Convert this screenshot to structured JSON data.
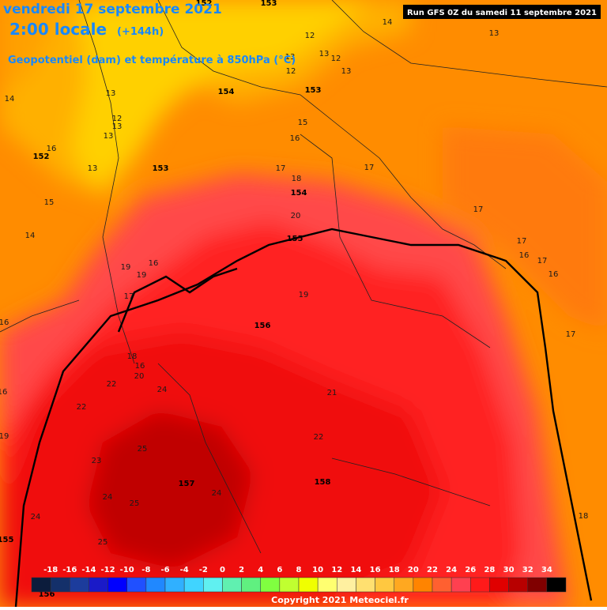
{
  "header": {
    "date": "vendredi 17 septembre 2021",
    "time": "2:00 locale",
    "lead": "(+144h)",
    "subtitle": "Geopotentiel (dam) et température à 850hPa (°C)",
    "run": "Run GFS 0Z du samedi 11 septembre 2021"
  },
  "legend": {
    "ticks": [
      -18,
      -16,
      -14,
      -12,
      -10,
      -8,
      -6,
      -4,
      -2,
      0,
      2,
      4,
      6,
      8,
      10,
      12,
      14,
      16,
      18,
      20,
      22,
      24,
      26,
      28,
      30,
      32,
      34
    ],
    "colors": [
      "#0c1c3c",
      "#14306a",
      "#1c3c9c",
      "#1a1ac8",
      "#0000ff",
      "#2050ff",
      "#2088ff",
      "#30b0ff",
      "#40d4ff",
      "#60f0f0",
      "#60f0b0",
      "#60f080",
      "#80ff40",
      "#c0ff30",
      "#f0ff00",
      "#ffff70",
      "#fff0a0",
      "#ffe070",
      "#ffc840",
      "#ffa820",
      "#ff8400",
      "#ff6030",
      "#ff4050",
      "#ff1a1a",
      "#e00000",
      "#b80000",
      "#800000",
      "#000000"
    ]
  },
  "temperature_labels": [
    14,
    13,
    12,
    13,
    12,
    13,
    12,
    13,
    14,
    13,
    12,
    13,
    13,
    15,
    16,
    16,
    13,
    15,
    14,
    17,
    18,
    17,
    17,
    20,
    17,
    17,
    16,
    16,
    19,
    19,
    16,
    17,
    19,
    16,
    17,
    18,
    16,
    20,
    22,
    24,
    21,
    22,
    22,
    25,
    23,
    24,
    25,
    24,
    24,
    25,
    18,
    16,
    19
  ],
  "geopotential_labels": [
    152,
    153,
    152,
    153,
    154,
    153,
    154,
    155,
    156,
    157,
    158,
    155,
    156
  ],
  "footer": {
    "copyright": "Copyright 2021 Meteociel.fr"
  }
}
